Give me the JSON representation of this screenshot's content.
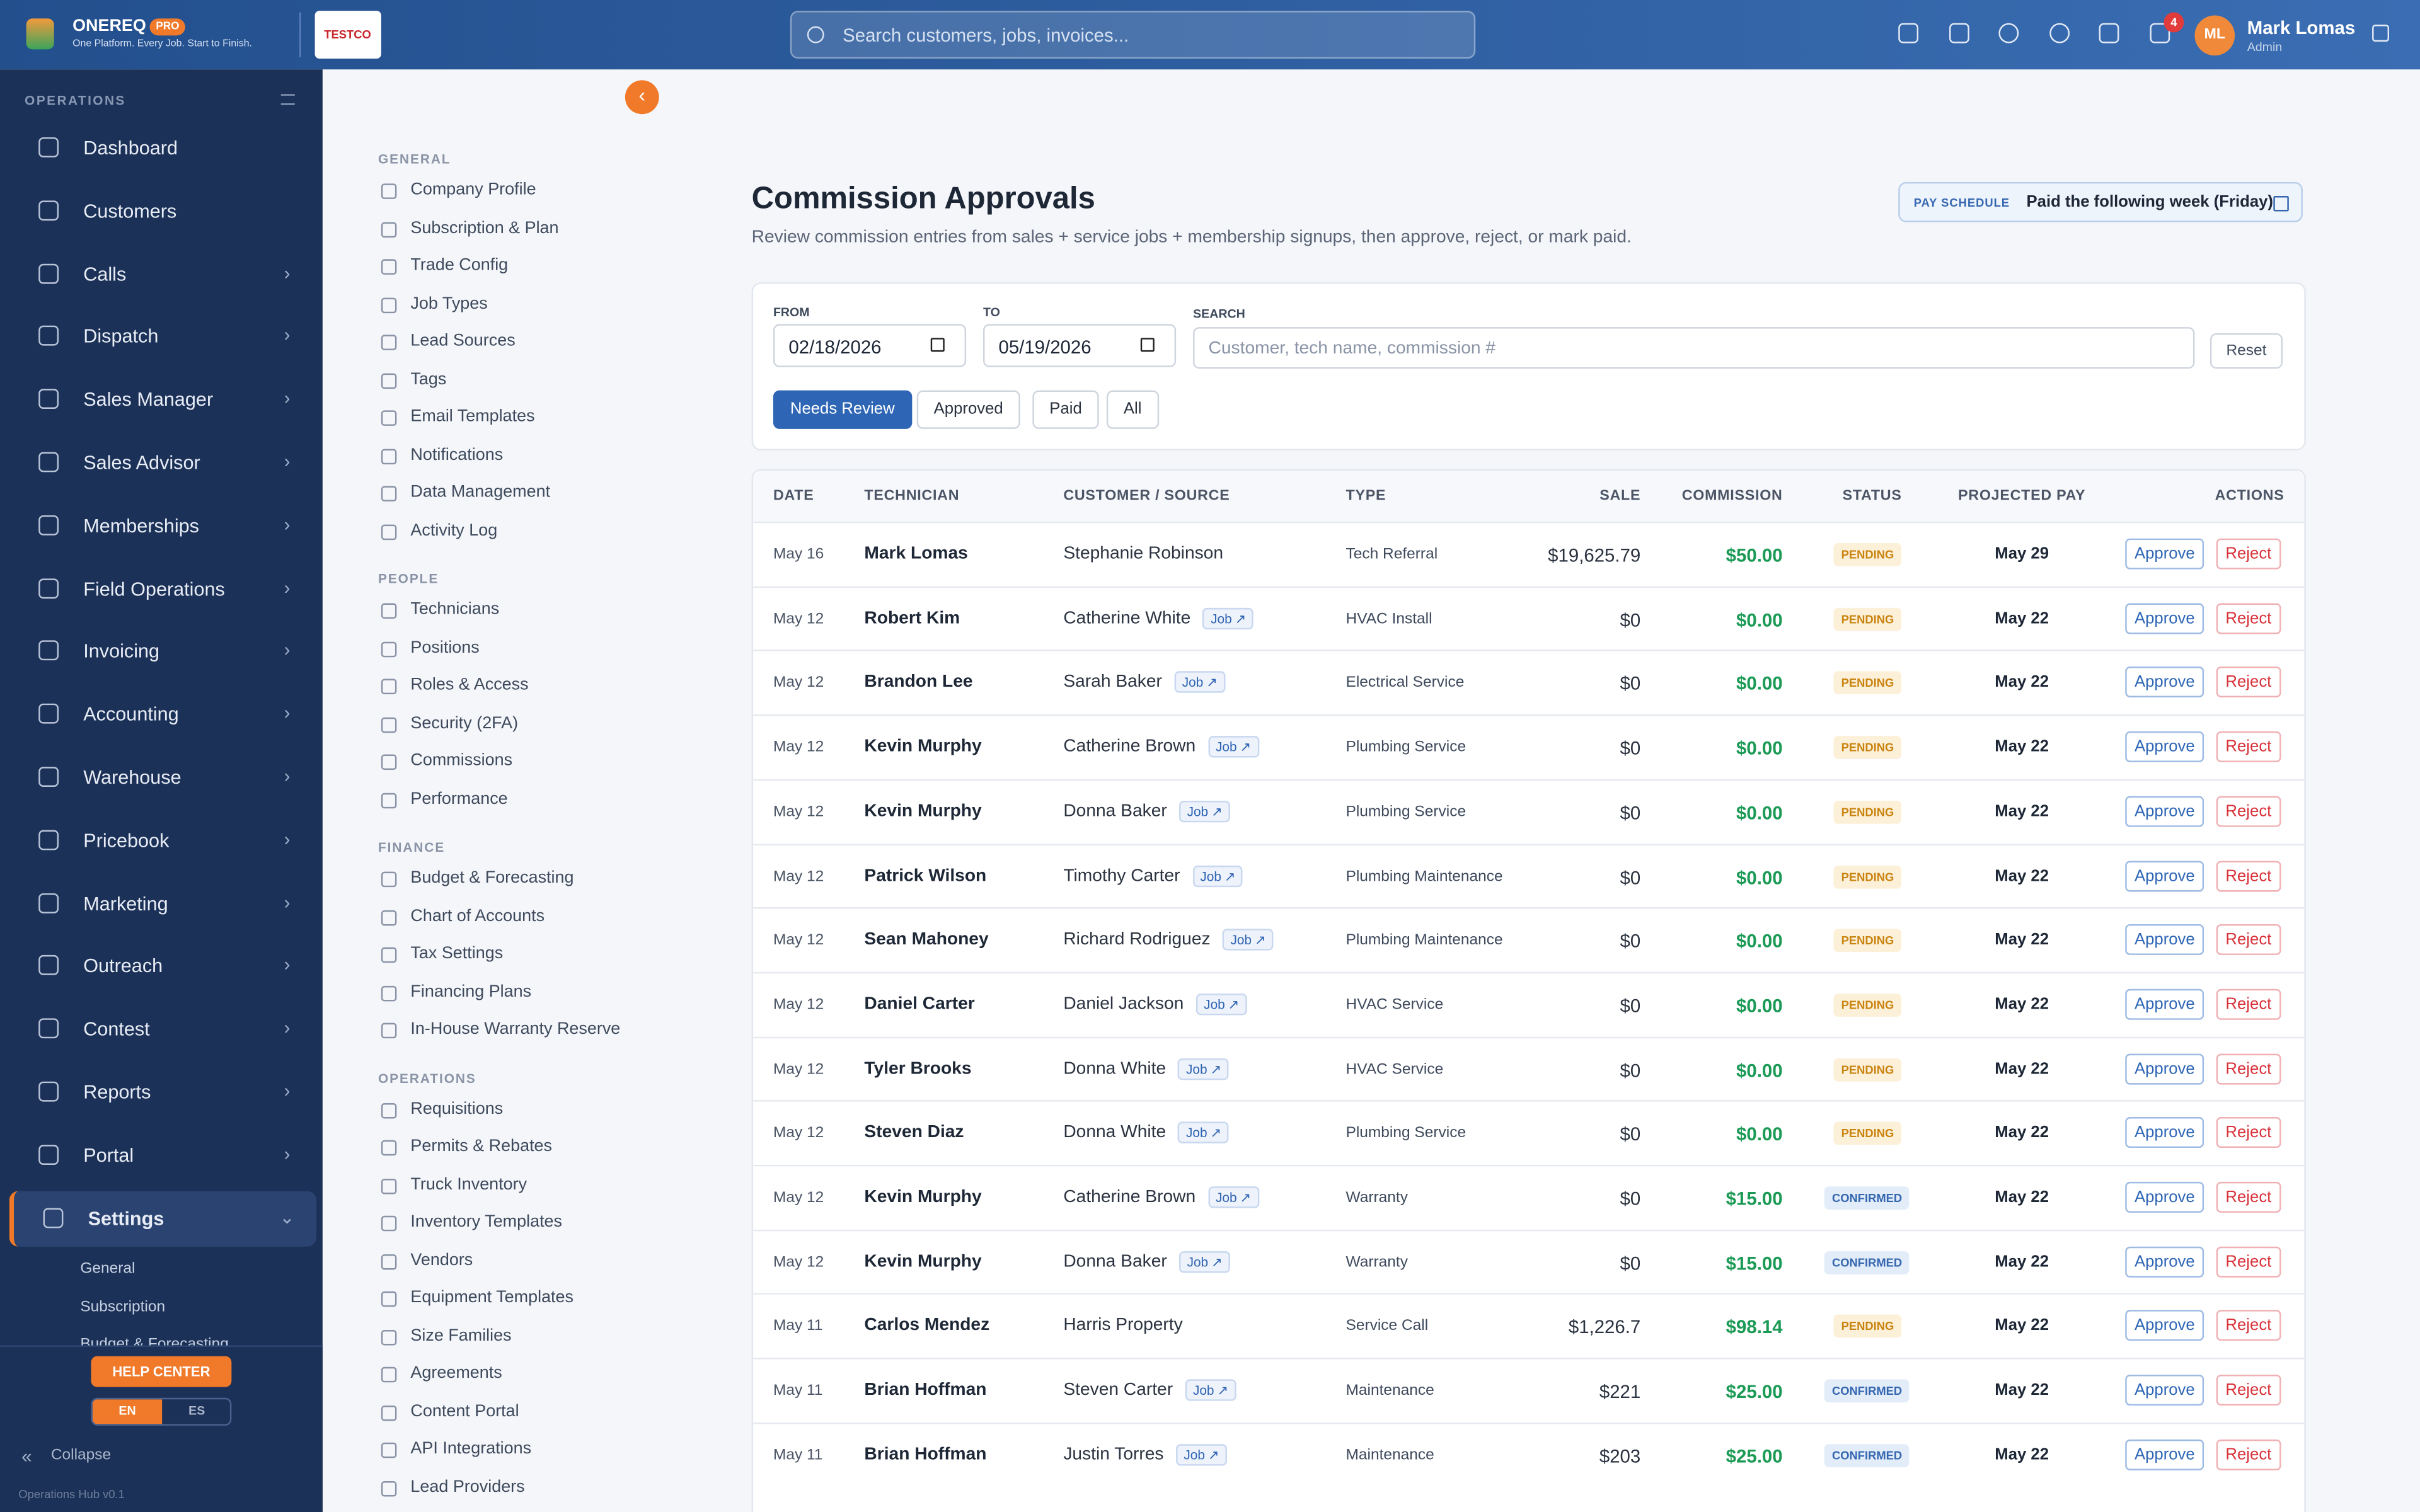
{
  "header": {
    "brand": "ONEREQ",
    "badge": "PRO",
    "tagline": "One Platform. Every Job. Start to Finish.",
    "logo_text": "TESTCO",
    "search_placeholder": "Search customers, jobs, invoices...",
    "notification_count": "4",
    "user_initials": "ML",
    "user_name": "Mark Lomas",
    "user_role": "Admin"
  },
  "sidebar": {
    "section": "OPERATIONS",
    "items": [
      {
        "label": "Dashboard",
        "submenu": false
      },
      {
        "label": "Customers",
        "submenu": false
      },
      {
        "label": "Calls",
        "submenu": true
      },
      {
        "label": "Dispatch",
        "submenu": true
      },
      {
        "label": "Sales Manager",
        "submenu": true
      },
      {
        "label": "Sales Advisor",
        "submenu": true
      },
      {
        "label": "Memberships",
        "submenu": true
      },
      {
        "label": "Field Operations",
        "submenu": true
      },
      {
        "label": "Invoicing",
        "submenu": true
      },
      {
        "label": "Accounting",
        "submenu": true
      },
      {
        "label": "Warehouse",
        "submenu": true
      },
      {
        "label": "Pricebook",
        "submenu": true
      },
      {
        "label": "Marketing",
        "submenu": true
      },
      {
        "label": "Outreach",
        "submenu": true
      },
      {
        "label": "Contest",
        "submenu": true
      },
      {
        "label": "Reports",
        "submenu": true
      },
      {
        "label": "Portal",
        "submenu": true
      },
      {
        "label": "Settings",
        "submenu": true,
        "active": true
      }
    ],
    "subitems": [
      "General",
      "Subscription",
      "Budget & Forecasting"
    ],
    "help": "HELP CENTER",
    "languages": [
      "EN",
      "ES"
    ],
    "collapse": "Collapse",
    "version": "Operations Hub v0.1"
  },
  "settings_menu": [
    {
      "title": "GENERAL",
      "items": [
        "Company Profile",
        "Subscription & Plan",
        "Trade Config",
        "Job Types",
        "Lead Sources",
        "Tags",
        "Email Templates",
        "Notifications",
        "Data Management",
        "Activity Log"
      ]
    },
    {
      "title": "PEOPLE",
      "items": [
        "Technicians",
        "Positions",
        "Roles & Access",
        "Security (2FA)",
        "Commissions",
        "Performance"
      ]
    },
    {
      "title": "FINANCE",
      "items": [
        "Budget & Forecasting",
        "Chart of Accounts",
        "Tax Settings",
        "Financing Plans",
        "In-House Warranty Reserve"
      ]
    },
    {
      "title": "OPERATIONS",
      "items": [
        "Requisitions",
        "Permits & Rebates",
        "Truck Inventory",
        "Inventory Templates",
        "Vendors",
        "Equipment Templates",
        "Size Families",
        "Agreements",
        "Content Portal",
        "API Integrations",
        "Lead Providers"
      ]
    }
  ],
  "page": {
    "title": "Commission Approvals",
    "subtitle": "Review commission entries from sales + service jobs + membership signups, then approve, reject, or mark paid.",
    "pay_schedule_label": "PAY SCHEDULE",
    "pay_schedule_value": "Paid the following week (Friday)",
    "filters": {
      "from_label": "FROM",
      "from_value": "02/18/2026",
      "to_label": "TO",
      "to_value": "05/19/2026",
      "search_label": "SEARCH",
      "search_placeholder": "Customer, tech name, commission #",
      "reset": "Reset",
      "tabs": [
        "Needs Review",
        "Approved",
        "Paid",
        "All"
      ]
    },
    "table": {
      "columns": [
        "DATE",
        "TECHNICIAN",
        "CUSTOMER / SOURCE",
        "TYPE",
        "SALE",
        "COMMISSION",
        "STATUS",
        "PROJECTED PAY",
        "ACTIONS"
      ],
      "job_label": "Job",
      "approve": "Approve",
      "reject": "Reject",
      "rows": [
        {
          "date": "May 16",
          "technician": "Mark Lomas",
          "customer": "Stephanie Robinson",
          "job": false,
          "type": "Tech Referral",
          "sale": "$19,625.79",
          "commission": "$50.00",
          "status": "PENDING",
          "projected": "May 29"
        },
        {
          "date": "May 12",
          "technician": "Robert Kim",
          "customer": "Catherine White",
          "job": true,
          "type": "HVAC Install",
          "sale": "$0",
          "commission": "$0.00",
          "status": "PENDING",
          "projected": "May 22"
        },
        {
          "date": "May 12",
          "technician": "Brandon Lee",
          "customer": "Sarah Baker",
          "job": true,
          "type": "Electrical Service",
          "sale": "$0",
          "commission": "$0.00",
          "status": "PENDING",
          "projected": "May 22"
        },
        {
          "date": "May 12",
          "technician": "Kevin Murphy",
          "customer": "Catherine Brown",
          "job": true,
          "type": "Plumbing Service",
          "sale": "$0",
          "commission": "$0.00",
          "status": "PENDING",
          "projected": "May 22"
        },
        {
          "date": "May 12",
          "technician": "Kevin Murphy",
          "customer": "Donna Baker",
          "job": true,
          "type": "Plumbing Service",
          "sale": "$0",
          "commission": "$0.00",
          "status": "PENDING",
          "projected": "May 22"
        },
        {
          "date": "May 12",
          "technician": "Patrick Wilson",
          "customer": "Timothy Carter",
          "job": true,
          "type": "Plumbing Maintenance",
          "sale": "$0",
          "commission": "$0.00",
          "status": "PENDING",
          "projected": "May 22"
        },
        {
          "date": "May 12",
          "technician": "Sean Mahoney",
          "customer": "Richard Rodriguez",
          "job": true,
          "type": "Plumbing Maintenance",
          "sale": "$0",
          "commission": "$0.00",
          "status": "PENDING",
          "projected": "May 22"
        },
        {
          "date": "May 12",
          "technician": "Daniel Carter",
          "customer": "Daniel Jackson",
          "job": true,
          "type": "HVAC Service",
          "sale": "$0",
          "commission": "$0.00",
          "status": "PENDING",
          "projected": "May 22"
        },
        {
          "date": "May 12",
          "technician": "Tyler Brooks",
          "customer": "Donna White",
          "job": true,
          "type": "HVAC Service",
          "sale": "$0",
          "commission": "$0.00",
          "status": "PENDING",
          "projected": "May 22"
        },
        {
          "date": "May 12",
          "technician": "Steven Diaz",
          "customer": "Donna White",
          "job": true,
          "type": "Plumbing Service",
          "sale": "$0",
          "commission": "$0.00",
          "status": "PENDING",
          "projected": "May 22"
        },
        {
          "date": "May 12",
          "technician": "Kevin Murphy",
          "customer": "Catherine Brown",
          "job": true,
          "type": "Warranty",
          "sale": "$0",
          "commission": "$15.00",
          "status": "CONFIRMED",
          "projected": "May 22"
        },
        {
          "date": "May 12",
          "technician": "Kevin Murphy",
          "customer": "Donna Baker",
          "job": true,
          "type": "Warranty",
          "sale": "$0",
          "commission": "$15.00",
          "status": "CONFIRMED",
          "projected": "May 22"
        },
        {
          "date": "May 11",
          "technician": "Carlos Mendez",
          "customer": "Harris Property",
          "job": false,
          "type": "Service Call",
          "sale": "$1,226.7",
          "commission": "$98.14",
          "status": "PENDING",
          "projected": "May 22"
        },
        {
          "date": "May 11",
          "technician": "Brian Hoffman",
          "customer": "Steven Carter",
          "job": true,
          "type": "Maintenance",
          "sale": "$221",
          "commission": "$25.00",
          "status": "CONFIRMED",
          "projected": "May 22"
        },
        {
          "date": "May 11",
          "technician": "Brian Hoffman",
          "customer": "Justin Torres",
          "job": true,
          "type": "Maintenance",
          "sale": "$203",
          "commission": "$25.00",
          "status": "CONFIRMED",
          "projected": "May 22"
        }
      ]
    }
  }
}
